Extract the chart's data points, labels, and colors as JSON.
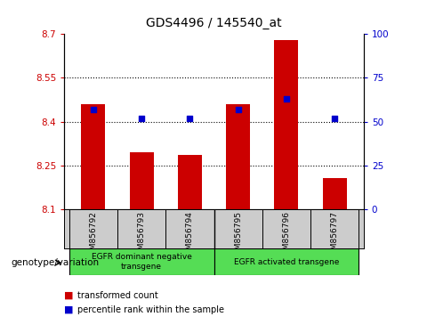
{
  "title": "GDS4496 / 145540_at",
  "categories": [
    "GSM856792",
    "GSM856793",
    "GSM856794",
    "GSM856795",
    "GSM856796",
    "GSM856797"
  ],
  "bar_values": [
    8.46,
    8.295,
    8.285,
    8.46,
    8.68,
    8.205
  ],
  "bar_bottom": 8.1,
  "percentile_values": [
    57,
    52,
    52,
    57,
    63,
    52
  ],
  "left_ylim": [
    8.1,
    8.7
  ],
  "right_ylim": [
    0,
    100
  ],
  "left_yticks": [
    8.1,
    8.25,
    8.4,
    8.55,
    8.7
  ],
  "right_yticks": [
    0,
    25,
    50,
    75,
    100
  ],
  "left_ytick_labels": [
    "8.1",
    "8.25",
    "8.4",
    "8.55",
    "8.7"
  ],
  "right_ytick_labels": [
    "0",
    "25",
    "50",
    "75",
    "100"
  ],
  "bar_color": "#cc0000",
  "dot_color": "#0000cc",
  "grid_lines": [
    8.25,
    8.4,
    8.55
  ],
  "group1_label": "EGFR dominant negative\ntransgene",
  "group2_label": "EGFR activated transgene",
  "group_label_prefix": "genotype/variation",
  "legend_items": [
    {
      "color": "#cc0000",
      "label": "transformed count"
    },
    {
      "color": "#0000cc",
      "label": "percentile rank within the sample"
    }
  ],
  "group_bar_color": "#55dd55",
  "xticklabel_bg": "#cccccc"
}
